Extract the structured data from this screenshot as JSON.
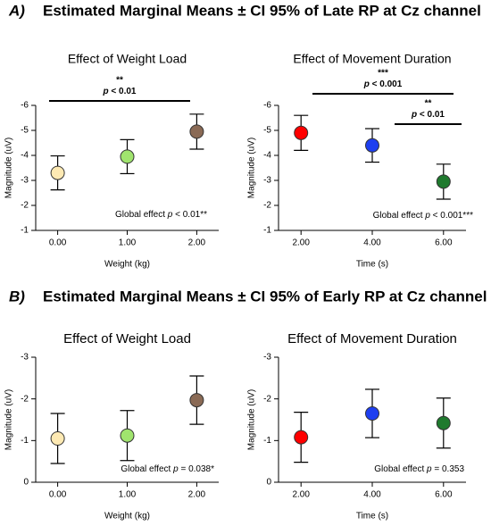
{
  "panels": [
    {
      "label": "A)",
      "title": "Estimated Marginal Means ± CI 95% of Late RP at Cz channel"
    },
    {
      "label": "B)",
      "title": "Estimated Marginal Means ± CI 95% of Early RP at Cz channel"
    }
  ],
  "chart_data": [
    {
      "type": "errorbar",
      "title": "Effect of Weight Load",
      "x_label": "Weight (kg)",
      "y_label": "Magnitude (uV)",
      "categories": [
        "0.00",
        "1.00",
        "2.00"
      ],
      "values": [
        -3.3,
        -3.95,
        -4.95
      ],
      "errors": [
        0.68,
        0.68,
        0.7
      ],
      "colors": [
        "#fde9b3",
        "#a0e46e",
        "#8a6a55"
      ],
      "ylim": [
        -1,
        -6
      ],
      "yticks": [
        -1,
        -2,
        -3,
        -4,
        -5,
        -6
      ],
      "significance": [
        {
          "stars": "**",
          "p": "p",
          "rest": " < 0.01"
        }
      ],
      "global_effect": [
        "Global effect ",
        "p",
        " < 0.01**"
      ]
    },
    {
      "type": "errorbar",
      "title": "Effect of Movement Duration",
      "x_label": "Time (s)",
      "y_label": "Magnitude (uV)",
      "categories": [
        "2.00",
        "4.00",
        "6.00"
      ],
      "values": [
        -4.9,
        -4.4,
        -2.95
      ],
      "errors": [
        0.7,
        0.67,
        0.7
      ],
      "colors": [
        "#ff0000",
        "#1e3ff0",
        "#1f7a2e"
      ],
      "ylim": [
        -1,
        -6
      ],
      "yticks": [
        -1,
        -2,
        -3,
        -4,
        -5,
        -6
      ],
      "significance": [
        {
          "stars": "***",
          "p": "p",
          "rest": " < 0.001"
        },
        {
          "stars": "**",
          "p": "p",
          "rest": " < 0.01"
        }
      ],
      "global_effect": [
        "Global effect ",
        "p",
        " < 0.001***"
      ]
    },
    {
      "type": "errorbar",
      "title": "Effect of Weight Load",
      "x_label": "Weight (kg)",
      "y_label": "Magnitude (uV)",
      "categories": [
        "0.00",
        "1.00",
        "2.00"
      ],
      "values": [
        -1.05,
        -1.12,
        -1.97
      ],
      "errors": [
        0.6,
        0.6,
        0.58
      ],
      "colors": [
        "#fde9b3",
        "#a0e46e",
        "#8a6a55"
      ],
      "ylim": [
        0,
        -3
      ],
      "yticks": [
        0,
        -1,
        -2,
        -3
      ],
      "significance": [],
      "global_effect": [
        "Global effect ",
        "p",
        " = 0.038*"
      ]
    },
    {
      "type": "errorbar",
      "title": "Effect of Movement Duration",
      "x_label": "Time (s)",
      "y_label": "Magnitude (uV)",
      "categories": [
        "2.00",
        "4.00",
        "6.00"
      ],
      "values": [
        -1.08,
        -1.65,
        -1.42
      ],
      "errors": [
        0.6,
        0.58,
        0.6
      ],
      "colors": [
        "#ff0000",
        "#1e3ff0",
        "#1f7a2e"
      ],
      "ylim": [
        0,
        -3
      ],
      "yticks": [
        0,
        -1,
        -2,
        -3
      ],
      "significance": [],
      "global_effect": [
        "Global effect ",
        "p",
        " = 0.353"
      ]
    }
  ]
}
